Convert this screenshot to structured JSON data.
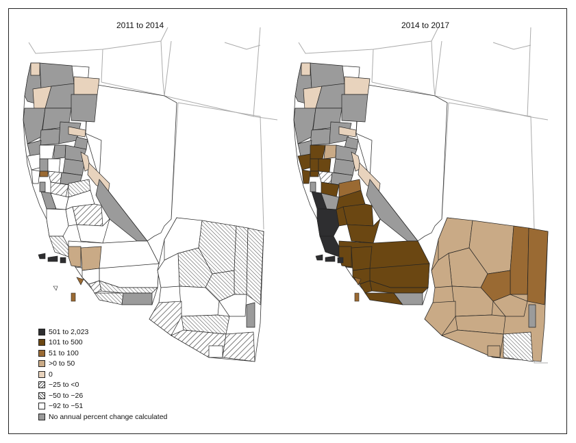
{
  "panels": [
    {
      "title": "2011 to 2014"
    },
    {
      "title": "2014 to 2017"
    }
  ],
  "legend": [
    {
      "label": "501 to 2,023",
      "color": "#2e2e30",
      "pattern": "solid"
    },
    {
      "label": "101 to 500",
      "color": "#6b4712",
      "pattern": "solid"
    },
    {
      "label": "51 to 100",
      "color": "#9a6a33",
      "pattern": "solid"
    },
    {
      "label": ">0 to 50",
      "color": "#c9aa86",
      "pattern": "solid"
    },
    {
      "label": "0",
      "color": "#e8d3bd",
      "pattern": "solid"
    },
    {
      "label": "−25 to <0",
      "color": "#ffffff",
      "pattern": "wide-hatch"
    },
    {
      "label": "−50 to −26",
      "color": "#ffffff",
      "pattern": "narrow-hatch"
    },
    {
      "label": "−92 to −51",
      "color": "#ffffff",
      "pattern": "solid"
    },
    {
      "label": "No annual percent change calculated",
      "color": "#9b9b9b",
      "pattern": "solid"
    }
  ],
  "colors": {
    "border": "#222222",
    "state_lines": "#aaaaaa"
  }
}
